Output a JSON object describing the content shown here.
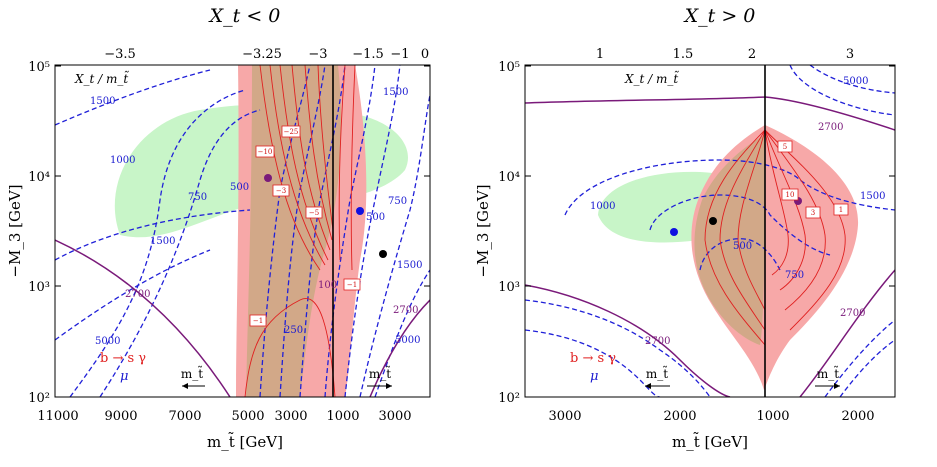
{
  "colors": {
    "blue_contour": "#2020d8",
    "purple_contour": "#7a1a7a",
    "red_contour": "#e02020",
    "pink_region": "#f7a8a8",
    "tan_region": "#d2a888",
    "green_region": "#c8f5c8",
    "point_black": "#000000",
    "point_blue": "#1010e0",
    "point_purple": "#7a1a7a"
  },
  "chart_data": [
    {
      "type": "contour",
      "panel": "left",
      "title": "X_t < 0",
      "xlabel": "m_t̃ [GeV]",
      "ylabel": "−M_3 [GeV]",
      "y_scale": "log",
      "ylim": [
        100,
        100000
      ],
      "x_ticks_bottom": [
        "11000",
        "9000",
        "7000",
        "5000",
        "3000",
        "1000",
        "1000",
        "3000"
      ],
      "x_ticks_top": [
        "−3.5",
        "−3.25",
        "−3",
        "−1.5",
        "−1",
        "0"
      ],
      "y_ticks": [
        "10²",
        "10³",
        "10⁴",
        "10⁵"
      ],
      "inner_label": "X_t / m_t̃",
      "legend": [
        "b → s γ",
        "μ"
      ],
      "arrow_labels": [
        "m_t̃",
        "m_t̃"
      ],
      "mu_contours": [
        "500",
        "750",
        "1000",
        "1500",
        "1500",
        "1500",
        "750",
        "500",
        "250",
        "5000",
        "5000"
      ],
      "m3_contours": [
        "2700",
        "2700"
      ],
      "bsg_contours": [
        "−25",
        "−10",
        "−3",
        "−5",
        "−1",
        "−1",
        "100"
      ],
      "points": [
        {
          "color": "purple",
          "m_stop_left_side": 2400,
          "M3": 10000
        },
        {
          "color": "blue",
          "m_stop_right_side": 2400,
          "M3": 5000
        },
        {
          "color": "black",
          "m_stop_right_side": 3000,
          "M3": 2000
        }
      ]
    },
    {
      "type": "contour",
      "panel": "right",
      "title": "X_t > 0",
      "xlabel": "m_t̃ [GeV]",
      "ylabel": "−M_3 [GeV]",
      "y_scale": "log",
      "ylim": [
        100,
        100000
      ],
      "x_ticks_bottom": [
        "3000",
        "2000",
        "1000",
        "1000",
        "2000"
      ],
      "x_ticks_top": [
        "1",
        "1.5",
        "2",
        "2",
        "3"
      ],
      "y_ticks": [
        "10²",
        "10³",
        "10⁴",
        "10⁵"
      ],
      "inner_label": "X_t / m_t̃",
      "legend": [
        "b → s γ",
        "μ"
      ],
      "arrow_labels": [
        "m_t̃",
        "m_t̃"
      ],
      "mu_contours": [
        "1000",
        "500",
        "750",
        "1500",
        "5000"
      ],
      "m3_contours": [
        "2700",
        "2700",
        "2700"
      ],
      "bsg_contours": [
        "5",
        "10",
        "3",
        "1"
      ],
      "points": [
        {
          "color": "blue",
          "m_stop_left_side": 1950,
          "M3": 3200
        },
        {
          "color": "black",
          "m_stop_left_side": 1550,
          "M3": 4000
        },
        {
          "color": "purple",
          "m_stop_right_side": 1300,
          "M3": 6500
        }
      ]
    }
  ]
}
